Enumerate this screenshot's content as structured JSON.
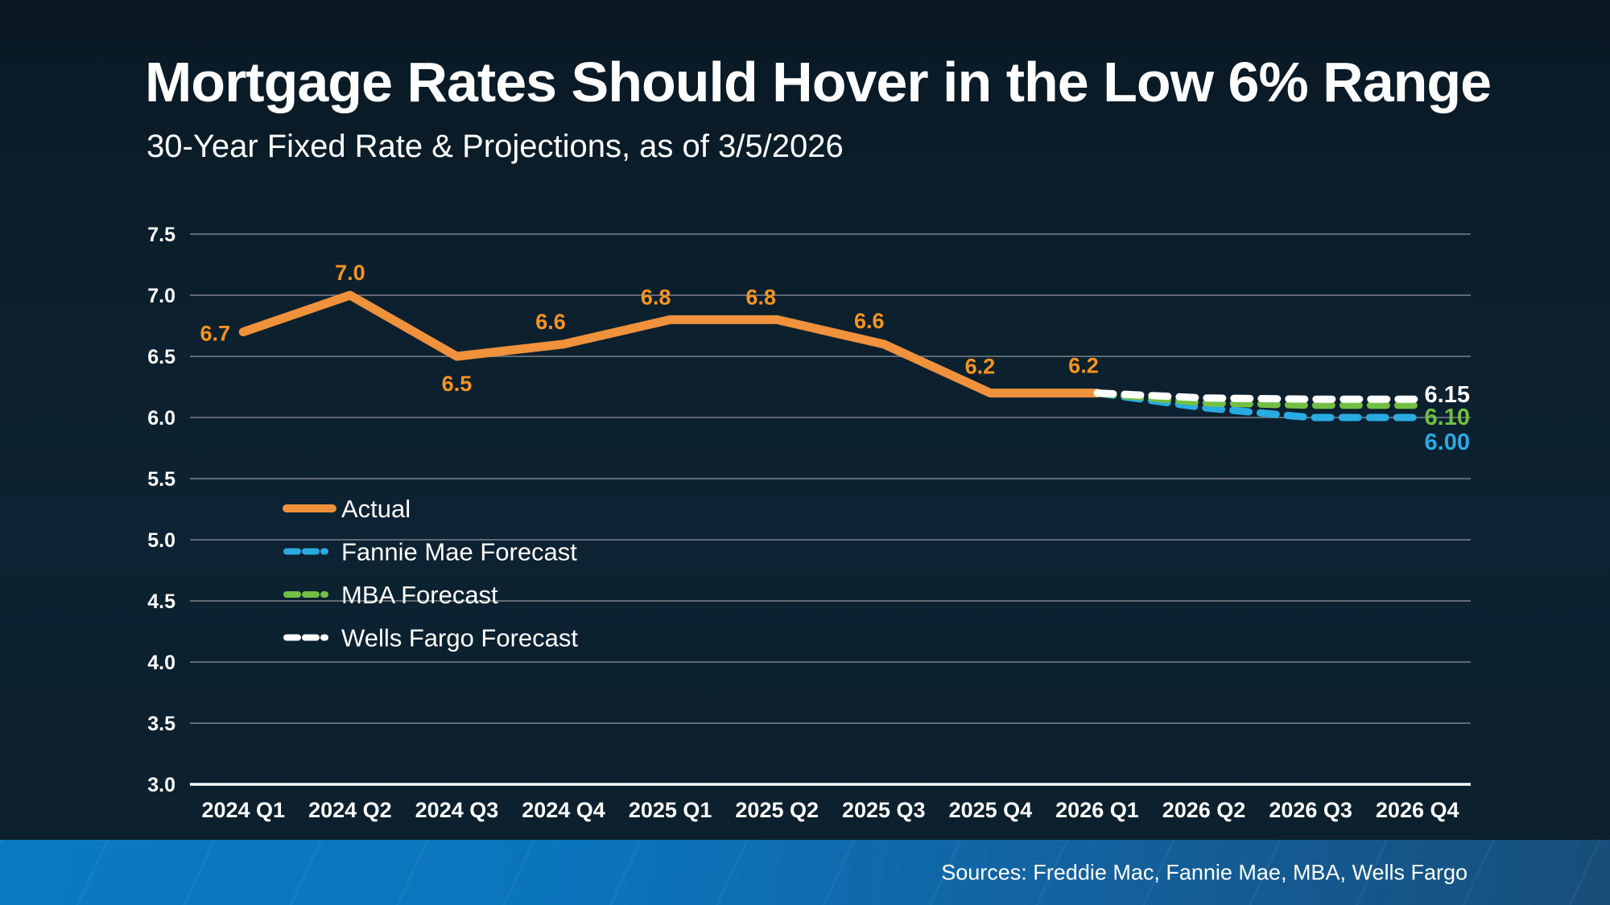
{
  "header": {
    "title": "Mortgage Rates Should Hover in the Low 6% Range",
    "subtitle": "30-Year Fixed Rate & Projections, as of 3/5/2026"
  },
  "footer": {
    "sources": "Sources: Freddie Mac, Fannie Mae, MBA, Wells Fargo"
  },
  "colors": {
    "background": "#0C2130",
    "actual": "#F0913C",
    "data_label": "#F7941E",
    "fannie_mae": "#29ABE2",
    "mba": "#72BF44",
    "wells_fargo": "#FFFFFF",
    "gridline": "#5F6A74",
    "axis_line": "#FFFFFF",
    "text": "#FFFFFF"
  },
  "chart_data": {
    "type": "line",
    "title": "30-Year Fixed Rate & Projections, as of 3/5/2026",
    "xlabel": "",
    "ylabel": "",
    "ylim": [
      3.0,
      7.5
    ],
    "ytick_step": 0.5,
    "yticks": [
      "7.5",
      "7.0",
      "6.5",
      "6.0",
      "5.5",
      "5.0",
      "4.5",
      "4.0",
      "3.5",
      "3.0"
    ],
    "grid": true,
    "legend_position": "inside-left-middle",
    "categories": [
      "2024 Q1",
      "2024 Q2",
      "2024 Q3",
      "2024 Q4",
      "2025 Q1",
      "2025 Q2",
      "2025 Q3",
      "2025 Q4",
      "2026 Q1",
      "2026 Q2",
      "2026 Q3",
      "2026 Q4"
    ],
    "series": [
      {
        "name": "Actual",
        "style": "solid",
        "color_key": "actual",
        "start_index": 0,
        "values": [
          6.7,
          7.0,
          6.5,
          6.6,
          6.8,
          6.8,
          6.6,
          6.2,
          6.2
        ],
        "point_labels": [
          "6.7",
          "7.0",
          "6.5",
          "6.6",
          "6.8",
          "6.8",
          "6.6",
          "6.2",
          "6.2"
        ]
      },
      {
        "name": "Fannie Mae Forecast",
        "style": "dashed",
        "color_key": "fannie_mae",
        "start_index": 8,
        "values": [
          6.2,
          6.08,
          6.0,
          6.0
        ],
        "end_label": "6.00"
      },
      {
        "name": "MBA Forecast",
        "style": "dashed",
        "color_key": "mba",
        "start_index": 8,
        "values": [
          6.2,
          6.12,
          6.1,
          6.1
        ],
        "end_label": "6.10"
      },
      {
        "name": "Wells Fargo Forecast",
        "style": "dashed",
        "color_key": "wells_fargo",
        "start_index": 8,
        "values": [
          6.2,
          6.16,
          6.15,
          6.15
        ],
        "end_label": "6.15"
      }
    ]
  }
}
